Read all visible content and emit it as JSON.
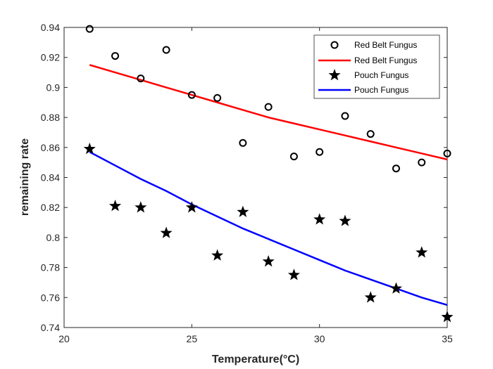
{
  "chart_data": {
    "type": "scatter",
    "xlabel": "Temperature(°C)",
    "ylabel": "remaining rate",
    "xlim": [
      20,
      35
    ],
    "ylim": [
      0.74,
      0.94
    ],
    "xticks": [
      20,
      25,
      30,
      35
    ],
    "xtick_labels": [
      "20",
      "25",
      "30",
      "35"
    ],
    "yticks": [
      0.74,
      0.76,
      0.78,
      0.8,
      0.82,
      0.84,
      0.86,
      0.88,
      0.9,
      0.92,
      0.94
    ],
    "ytick_labels": [
      "0.74",
      "0.76",
      "0.78",
      "0.8",
      "0.82",
      "0.84",
      "0.86",
      "0.88",
      "0.9",
      "0.92",
      "0.94"
    ],
    "grid": false,
    "legend_position": "top-right",
    "series": [
      {
        "name": "Red Belt Fungus",
        "kind": "scatter",
        "marker": "circle",
        "color": "#000000",
        "x": [
          21,
          22,
          23,
          24,
          25,
          26,
          27,
          28,
          29,
          30,
          31,
          32,
          33,
          34,
          35
        ],
        "y": [
          0.939,
          0.921,
          0.906,
          0.925,
          0.895,
          0.893,
          0.863,
          0.887,
          0.854,
          0.857,
          0.881,
          0.869,
          0.846,
          0.85,
          0.856
        ]
      },
      {
        "name": "Red Belt Fungus",
        "kind": "line",
        "color": "#ff0000",
        "x": [
          21,
          22,
          23,
          24,
          25,
          26,
          27,
          28,
          29,
          30,
          31,
          32,
          33,
          34,
          35
        ],
        "y": [
          0.915,
          0.91,
          0.905,
          0.9,
          0.895,
          0.89,
          0.885,
          0.88,
          0.876,
          0.872,
          0.868,
          0.864,
          0.86,
          0.856,
          0.852
        ]
      },
      {
        "name": "Pouch Fungus",
        "kind": "scatter",
        "marker": "star",
        "color": "#000000",
        "x": [
          21,
          22,
          23,
          24,
          25,
          26,
          27,
          28,
          29,
          30,
          31,
          32,
          33,
          34,
          35
        ],
        "y": [
          0.859,
          0.821,
          0.82,
          0.803,
          0.82,
          0.788,
          0.817,
          0.784,
          0.775,
          0.812,
          0.811,
          0.76,
          0.766,
          0.79,
          0.747
        ]
      },
      {
        "name": "Pouch Fungus",
        "kind": "line",
        "color": "#0000ff",
        "x": [
          21,
          22,
          23,
          24,
          25,
          26,
          27,
          28,
          29,
          30,
          31,
          32,
          33,
          34,
          35
        ],
        "y": [
          0.857,
          0.848,
          0.839,
          0.831,
          0.822,
          0.814,
          0.806,
          0.799,
          0.792,
          0.785,
          0.778,
          0.772,
          0.766,
          0.76,
          0.755
        ]
      }
    ]
  }
}
